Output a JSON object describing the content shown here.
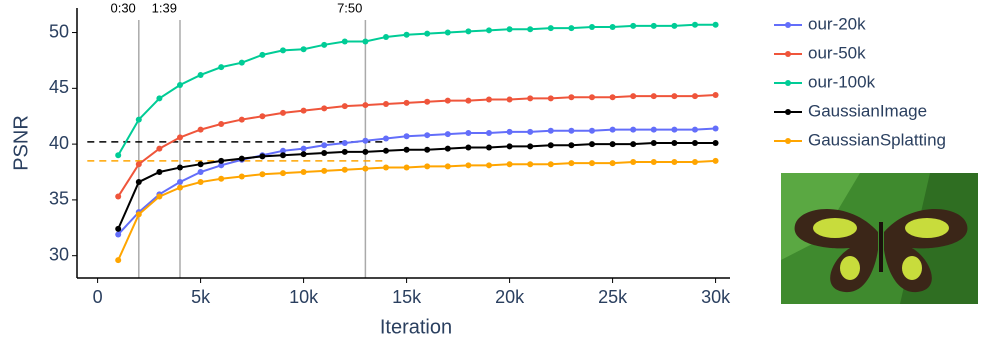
{
  "chart_data": {
    "type": "line",
    "x_label": "Iteration",
    "y_label": "PSNR",
    "x": [
      1000,
      2000,
      3000,
      4000,
      5000,
      6000,
      7000,
      8000,
      9000,
      10000,
      11000,
      12000,
      13000,
      14000,
      15000,
      16000,
      17000,
      18000,
      19000,
      20000,
      21000,
      22000,
      23000,
      24000,
      25000,
      26000,
      27000,
      28000,
      29000,
      30000
    ],
    "series": [
      {
        "name": "our-20k",
        "color": "#636efa",
        "values": [
          31.9,
          33.9,
          35.5,
          36.6,
          37.5,
          38.1,
          38.6,
          39.0,
          39.4,
          39.6,
          39.9,
          40.1,
          40.3,
          40.5,
          40.7,
          40.8,
          40.9,
          41.0,
          41.0,
          41.1,
          41.1,
          41.2,
          41.2,
          41.2,
          41.3,
          41.3,
          41.3,
          41.3,
          41.3,
          41.4
        ]
      },
      {
        "name": "our-50k",
        "color": "#ef553b",
        "values": [
          35.3,
          38.2,
          39.6,
          40.6,
          41.3,
          41.8,
          42.2,
          42.5,
          42.8,
          43.0,
          43.2,
          43.4,
          43.5,
          43.6,
          43.7,
          43.8,
          43.9,
          43.9,
          44.0,
          44.0,
          44.1,
          44.1,
          44.2,
          44.2,
          44.2,
          44.3,
          44.3,
          44.3,
          44.3,
          44.4
        ]
      },
      {
        "name": "our-100k",
        "color": "#00cc96",
        "values": [
          39.0,
          42.2,
          44.1,
          45.3,
          46.2,
          46.9,
          47.3,
          48.0,
          48.4,
          48.5,
          48.9,
          49.2,
          49.2,
          49.6,
          49.8,
          49.9,
          50.0,
          50.1,
          50.2,
          50.3,
          50.3,
          50.4,
          50.4,
          50.5,
          50.5,
          50.6,
          50.6,
          50.6,
          50.7,
          50.7
        ]
      },
      {
        "name": "GaussianImage",
        "color": "#000000",
        "values": [
          32.4,
          36.6,
          37.5,
          37.9,
          38.2,
          38.5,
          38.7,
          38.9,
          39.0,
          39.1,
          39.2,
          39.3,
          39.3,
          39.4,
          39.5,
          39.5,
          39.6,
          39.7,
          39.7,
          39.8,
          39.8,
          39.9,
          39.9,
          40.0,
          40.0,
          40.0,
          40.1,
          40.1,
          40.1,
          40.1
        ]
      },
      {
        "name": "GaussianSplatting",
        "color": "#ffa500",
        "values": [
          29.6,
          33.7,
          35.3,
          36.1,
          36.6,
          36.9,
          37.1,
          37.3,
          37.4,
          37.5,
          37.6,
          37.7,
          37.8,
          37.9,
          37.9,
          38.0,
          38.0,
          38.1,
          38.1,
          38.2,
          38.2,
          38.2,
          38.3,
          38.3,
          38.3,
          38.4,
          38.4,
          38.4,
          38.4,
          38.5
        ]
      }
    ],
    "xlim": [
      -1000,
      30700
    ],
    "ylim": [
      28,
      52.2
    ],
    "xticks": [
      0,
      {
        "value": 5000,
        "label": "5k"
      },
      {
        "value": 10000,
        "label": "10k"
      },
      {
        "value": 15000,
        "label": "15k"
      },
      {
        "value": 20000,
        "label": "20k"
      },
      {
        "value": 25000,
        "label": "25k"
      },
      {
        "value": 30000,
        "label": "30k"
      }
    ],
    "yticks": [
      30,
      35,
      40,
      45,
      50
    ],
    "vlines": [
      {
        "x": 2000,
        "label": "0:30"
      },
      {
        "x": 4000,
        "label": "1:39"
      },
      {
        "x": 13000,
        "label": "7:50"
      }
    ],
    "hlines": [
      {
        "y": 40.2,
        "color": "#000000",
        "x": [
          -500,
          14000
        ]
      },
      {
        "y": 38.5,
        "color": "#ffa500",
        "x": [
          -500,
          14000
        ]
      }
    ],
    "grid": false
  }
}
